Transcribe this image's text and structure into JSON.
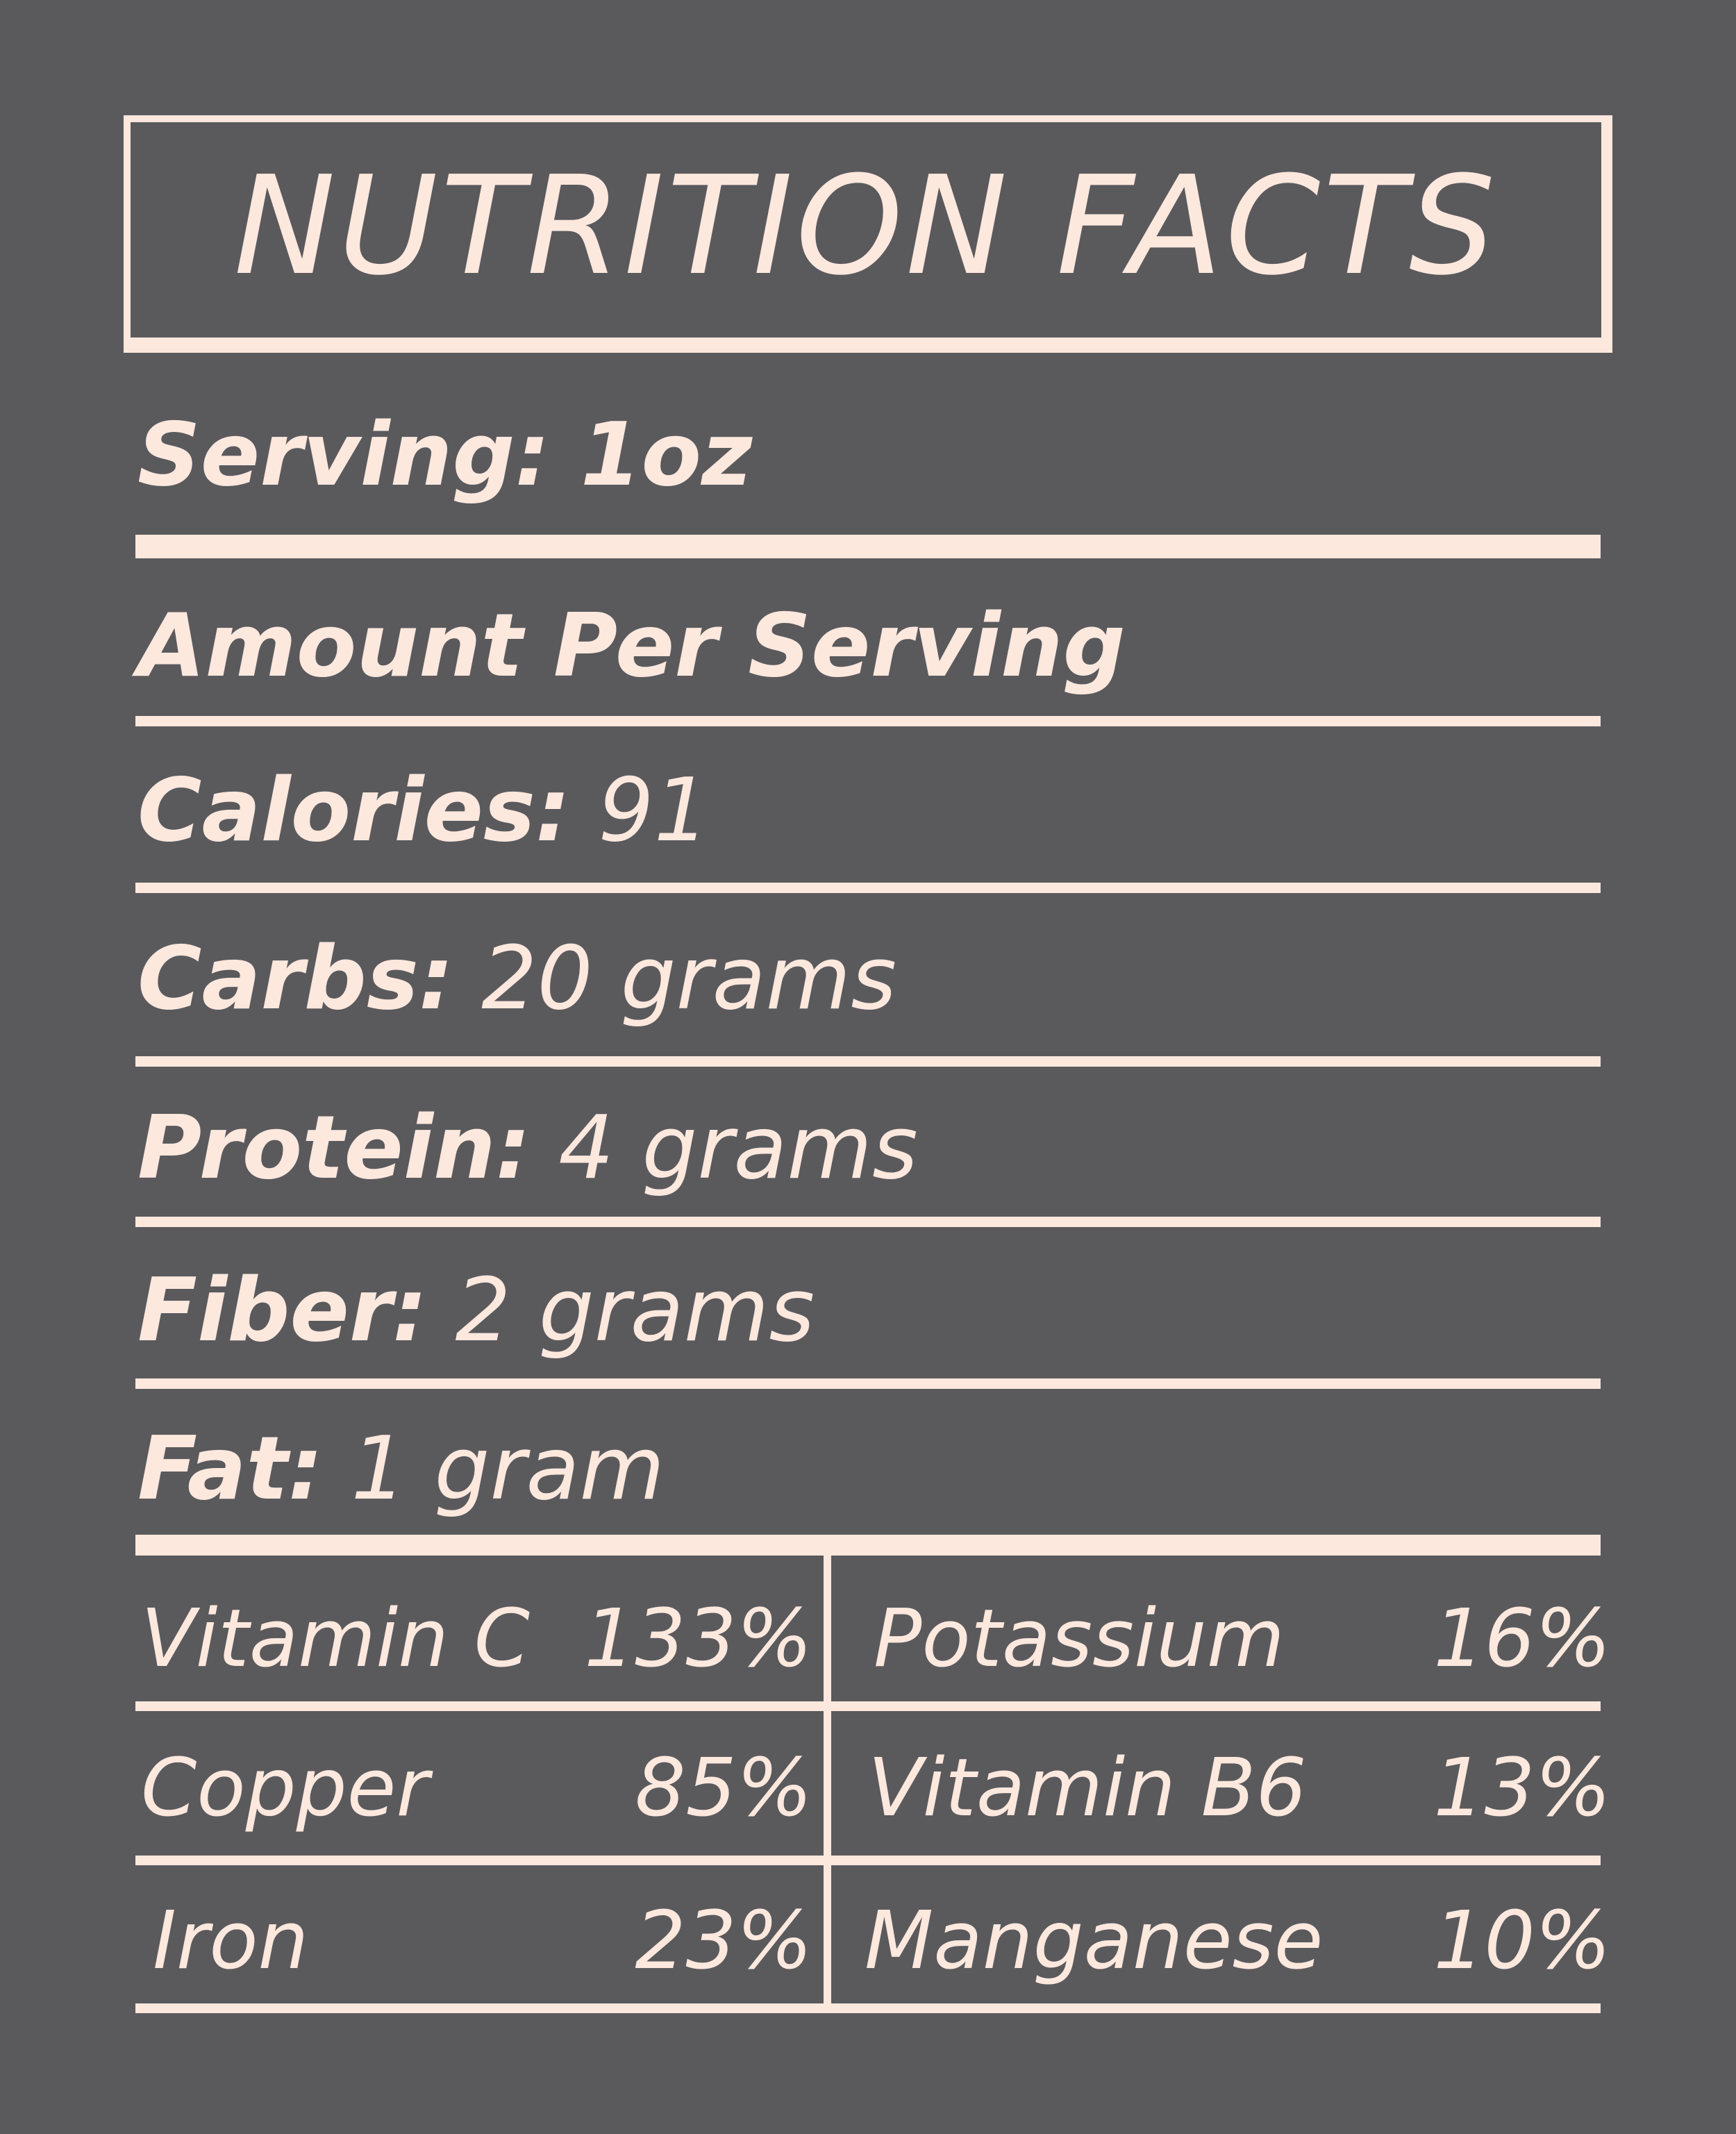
{
  "title": "NUTRITION FACTS",
  "serving": "Serving: 1oz",
  "amount_header": "Amount Per Serving",
  "facts": [
    {
      "label": "Calories:",
      "value": "91"
    },
    {
      "label": "Carbs:",
      "value": "20 grams"
    },
    {
      "label": "Protein:",
      "value": "4 grams"
    },
    {
      "label": "Fiber:",
      "value": "2 grams"
    },
    {
      "label": "Fat:",
      "value": "1 gram"
    }
  ],
  "minerals": [
    [
      {
        "name": "Vitamin C",
        "value": "133%"
      },
      {
        "name": "Potassium",
        "value": "16%"
      }
    ],
    [
      {
        "name": "Copper",
        "value": "85%"
      },
      {
        "name": "Vitamin B6",
        "value": "13%"
      }
    ],
    [
      {
        "name": "Iron",
        "value": "23%"
      },
      {
        "name": "Manganese",
        "value": "10%"
      }
    ]
  ],
  "colors": {
    "background": "#5a5a5d",
    "foreground": "#fde8de"
  }
}
